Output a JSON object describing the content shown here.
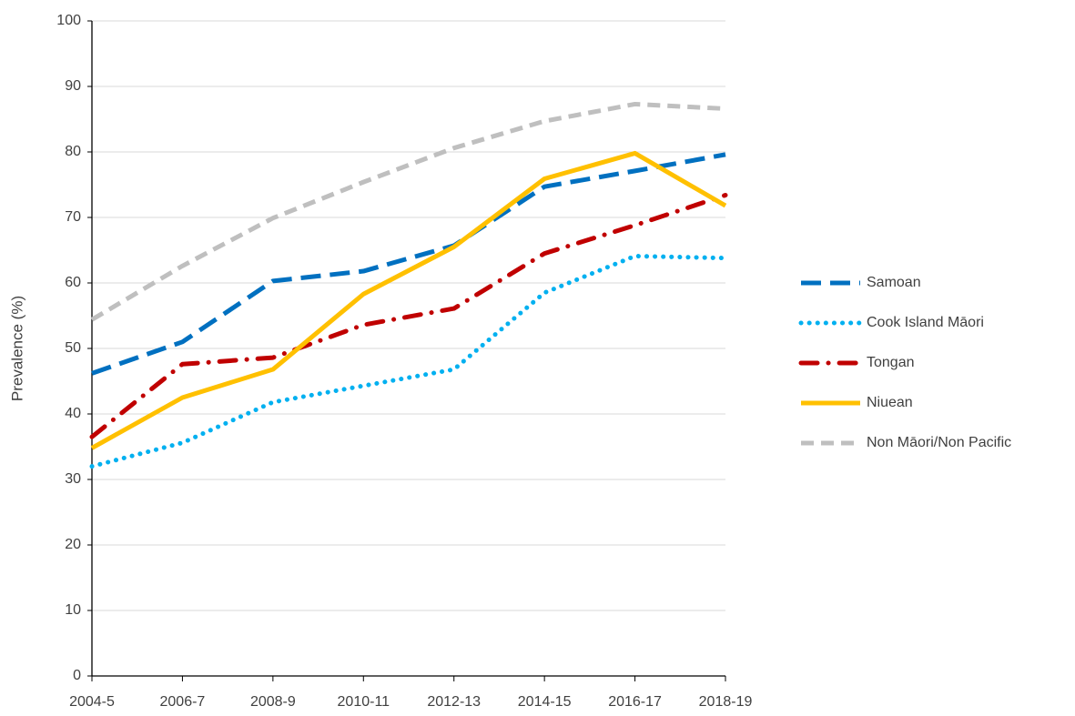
{
  "chart_data": {
    "type": "line",
    "y_label": "Prevalence (%)",
    "categories": [
      "2004-5",
      "2006-7",
      "2008-9",
      "2010-11",
      "2012-13",
      "2014-15",
      "2016-17",
      "2018-19"
    ],
    "series": [
      {
        "name": "Samoan",
        "color": "#0070c0",
        "style": "long-dash",
        "values": [
          46.2,
          51.0,
          60.3,
          61.8,
          65.7,
          74.7,
          77.1,
          79.6
        ]
      },
      {
        "name": "Cook Island Māori",
        "color": "#00b0f0",
        "style": "dot",
        "values": [
          32.0,
          35.6,
          41.8,
          44.3,
          46.8,
          58.5,
          64.1,
          63.8
        ]
      },
      {
        "name": "Tongan",
        "color": "#c00000",
        "style": "dash-dot",
        "values": [
          36.5,
          47.6,
          48.6,
          53.6,
          56.1,
          64.5,
          68.8,
          73.4
        ]
      },
      {
        "name": "Niuean",
        "color": "#ffc000",
        "style": "solid",
        "values": [
          34.8,
          42.5,
          46.8,
          58.3,
          65.5,
          75.9,
          79.8,
          71.8
        ]
      },
      {
        "name": "Non Māori/Non Pacific",
        "color": "#bfbfbf",
        "style": "dash",
        "values": [
          54.4,
          62.6,
          69.9,
          75.4,
          80.6,
          84.7,
          87.3,
          86.6
        ]
      }
    ],
    "ylim": [
      0,
      100
    ],
    "yticks": [
      0,
      10,
      20,
      30,
      40,
      50,
      60,
      70,
      80,
      90,
      100
    ],
    "grid": true,
    "legend": "right"
  }
}
